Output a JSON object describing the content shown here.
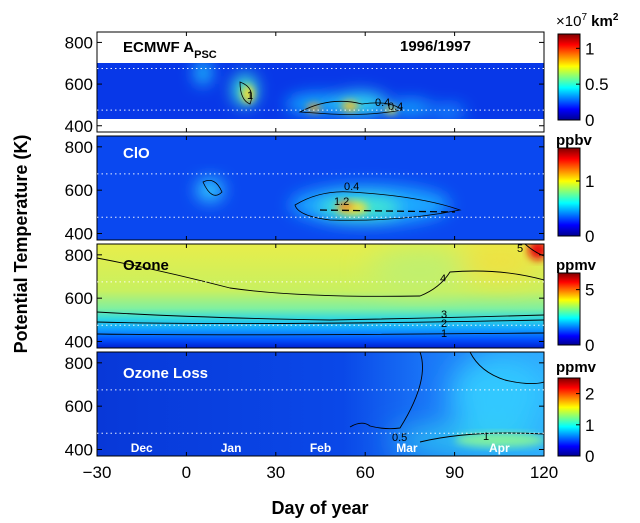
{
  "chart_data": {
    "type": "heatmap",
    "season": "1996/1997",
    "xlabel": "Day of year",
    "ylabel": "Potential Temperature (K)",
    "xlim": [
      -30,
      120
    ],
    "xticks": [
      "−30",
      "0",
      "30",
      "60",
      "90",
      "120"
    ],
    "ylim": [
      370,
      850
    ],
    "yticks": [
      "400",
      "600",
      "800"
    ],
    "months": [
      "Dec",
      "Jan",
      "Feb",
      "Mar",
      "Apr"
    ],
    "panels": [
      {
        "title": "ECMWF A",
        "title_sub": "PSC",
        "colorbar_unit_prefix": "×10",
        "colorbar_unit_exp": "7",
        "colorbar_unit_main": " km",
        "colorbar_unit_sup": "2",
        "colorbar_ticks": [
          "0",
          "0.5",
          "1"
        ],
        "clim": [
          0,
          1.2
        ],
        "contour_labels": [
          "1",
          "0.4",
          "0.4"
        ],
        "data_range_theta": [
          400,
          680
        ]
      },
      {
        "title": "ClO",
        "colorbar_unit": "ppbv",
        "colorbar_ticks": [
          "0",
          "1"
        ],
        "clim": [
          0,
          1.6
        ],
        "contour_labels": [
          "0.4",
          "1.2"
        ]
      },
      {
        "title": "Ozone",
        "colorbar_unit": "ppmv",
        "colorbar_ticks": [
          "0",
          "5"
        ],
        "clim": [
          0,
          6.5
        ],
        "contour_labels": [
          "4",
          "3",
          "2",
          "1",
          "5"
        ]
      },
      {
        "title": "Ozone Loss",
        "colorbar_unit": "ppmv",
        "colorbar_ticks": [
          "0",
          "1",
          "2"
        ],
        "clim": [
          0,
          2.5
        ],
        "contour_labels": [
          "0.5",
          "1"
        ]
      }
    ],
    "reference_lines_theta": [
      475,
      675
    ]
  }
}
